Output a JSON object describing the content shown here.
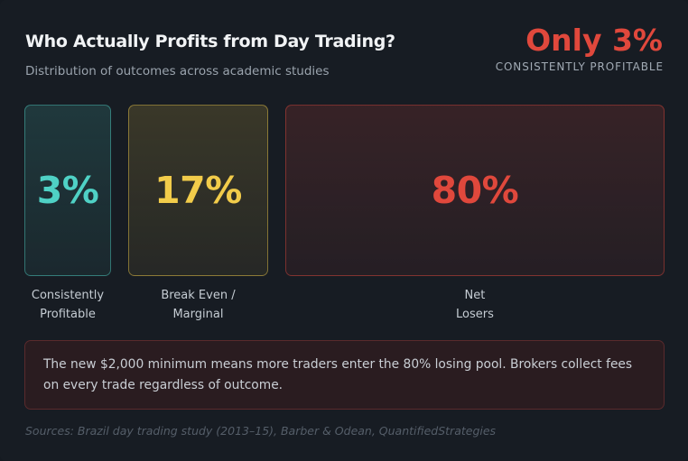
{
  "header": {
    "title": "Who Actually Profits from Day Trading?",
    "subtitle": "Distribution of outcomes across academic studies",
    "headline": "Only 3%",
    "headline_sub": "CONSISTENTLY PROFITABLE"
  },
  "chart_data": {
    "type": "bar",
    "title": "Who Actually Profits from Day Trading?",
    "subtitle": "Distribution of outcomes across academic studies",
    "categories": [
      "Consistently\nProfitable",
      "Break Even /\nMarginal",
      "Net\nLosers"
    ],
    "values": [
      3,
      17,
      80
    ],
    "value_labels": [
      "3%",
      "17%",
      "80%"
    ],
    "unit": "%"
  },
  "colors": {
    "profitable": "#4fd1c5",
    "break_even": "#f2cc4a",
    "losers": "#e0483c",
    "headline": "#e0483c"
  },
  "note": {
    "text": "The new $2,000 minimum means more traders enter the 80% losing pool. Brokers collect fees on every trade regardless of outcome."
  },
  "footer": {
    "source": "Sources: Brazil day trading study (2013–15), Barber & Odean, QuantifiedStrategies"
  }
}
